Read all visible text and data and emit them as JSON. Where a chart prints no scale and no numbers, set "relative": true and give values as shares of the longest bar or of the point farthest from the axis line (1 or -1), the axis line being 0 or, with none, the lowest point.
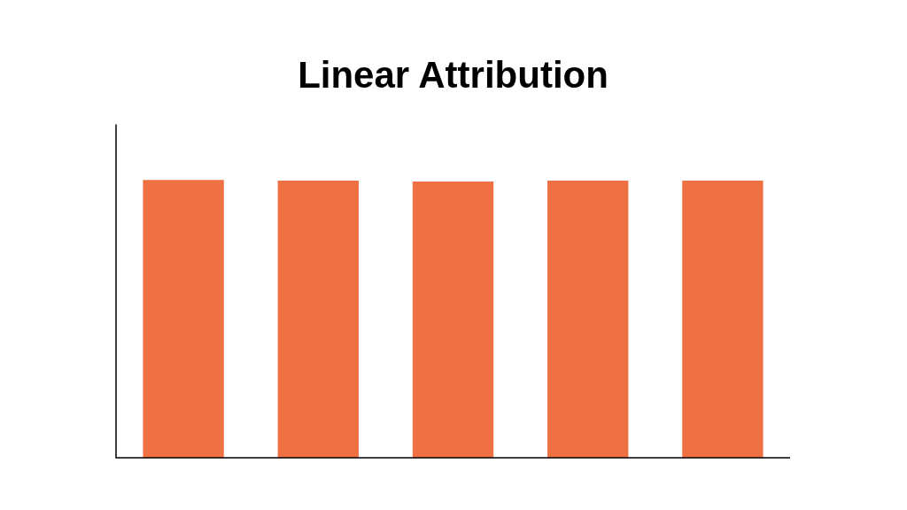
{
  "chart_data": {
    "type": "bar",
    "title": "Linear Attribution",
    "categories": [
      null,
      null,
      null,
      null,
      null
    ],
    "relative": true,
    "series": [
      {
        "color": "#ef7042",
        "values": [
          1,
          0.997,
          0.994,
          0.997,
          0.997
        ]
      }
    ],
    "legend": false
  }
}
